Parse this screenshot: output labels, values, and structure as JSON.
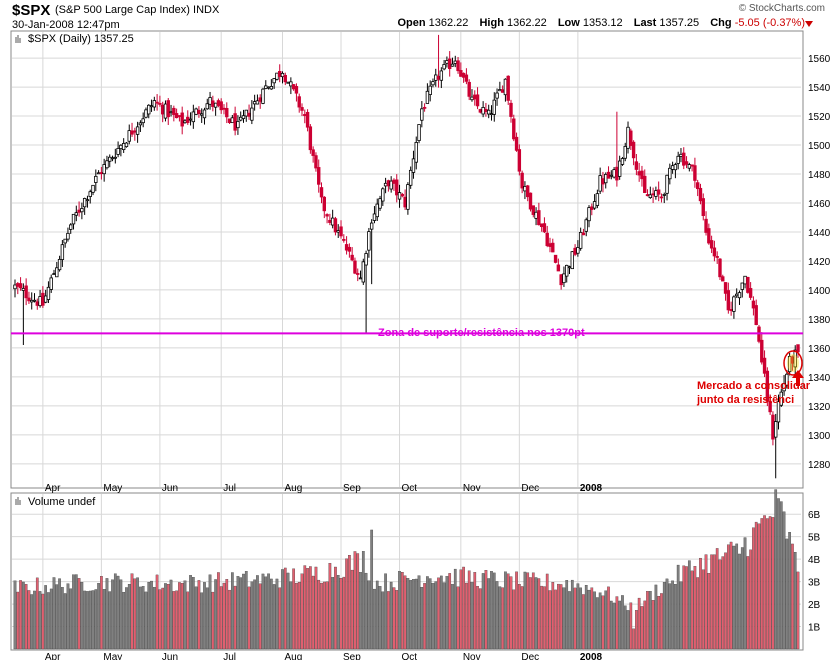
{
  "header": {
    "symbol": "$SPX",
    "name": "(S&P 500 Large Cap Index)",
    "exchange": "INDX",
    "datetime": "30-Jan-2008 12:47pm",
    "brand": "© StockCharts.com",
    "open_label": "Open",
    "open": "1362.22",
    "high_label": "High",
    "high": "1362.22",
    "low_label": "Low",
    "low": "1353.12",
    "last_label": "Last",
    "last": "1357.25",
    "chg_label": "Chg",
    "chg": "-5.05 (-0.37%)"
  },
  "price_panel": {
    "legend": "$SPX (Daily) 1357.25",
    "support_label": "Zona de suporte/resistência nos 1370pt",
    "annotation_line1": "Mercado a consolidar",
    "annotation_line2": "junto da resistênci",
    "support_color": "#dd00dd",
    "annotation_color": "#dd0000"
  },
  "volume_panel": {
    "legend": "Volume undef"
  },
  "colors": {
    "up": "#000000",
    "down": "#cc0033",
    "vol_up": "#808080",
    "vol_down": "#e06070",
    "grid": "#d8d8d8"
  },
  "chart_data": [
    {
      "type": "candlestick",
      "title": "$SPX (Daily) 1357.25",
      "y_ticks": [
        1280,
        1300,
        1320,
        1340,
        1360,
        1380,
        1400,
        1420,
        1440,
        1460,
        1480,
        1500,
        1520,
        1540,
        1560
      ],
      "ylim": [
        1264,
        1578
      ],
      "x_ticks": [
        "Apr",
        "May",
        "Jun",
        "Jul",
        "Aug",
        "Sep",
        "Oct",
        "Nov",
        "Dec",
        "2008"
      ],
      "support_level": 1370,
      "anchors": [
        [
          0,
          1402
        ],
        [
          10,
          1390
        ],
        [
          20,
          1445
        ],
        [
          30,
          1480
        ],
        [
          40,
          1505
        ],
        [
          50,
          1530
        ],
        [
          60,
          1515
        ],
        [
          70,
          1530
        ],
        [
          80,
          1512
        ],
        [
          90,
          1540
        ],
        [
          96,
          1552
        ],
        [
          104,
          1520
        ],
        [
          110,
          1460
        ],
        [
          118,
          1432
        ],
        [
          124,
          1408
        ],
        [
          128,
          1450
        ],
        [
          134,
          1475
        ],
        [
          140,
          1460
        ],
        [
          146,
          1525
        ],
        [
          152,
          1548
        ],
        [
          158,
          1560
        ],
        [
          164,
          1530
        ],
        [
          170,
          1520
        ],
        [
          176,
          1545
        ],
        [
          182,
          1472
        ],
        [
          190,
          1440
        ],
        [
          196,
          1408
        ],
        [
          202,
          1430
        ],
        [
          210,
          1475
        ],
        [
          216,
          1480
        ],
        [
          220,
          1510
        ],
        [
          226,
          1465
        ],
        [
          232,
          1465
        ],
        [
          238,
          1495
        ],
        [
          244,
          1480
        ],
        [
          248,
          1440
        ],
        [
          252,
          1420
        ],
        [
          256,
          1385
        ],
        [
          262,
          1410
        ],
        [
          266,
          1378
        ],
        [
          270,
          1325
        ],
        [
          272,
          1300
        ],
        [
          274,
          1322
        ],
        [
          278,
          1350
        ],
        [
          281,
          1357
        ]
      ],
      "extremes": [
        {
          "index": 3,
          "low": 1362
        },
        {
          "index": 126,
          "low": 1370
        },
        {
          "index": 128,
          "low": 1404
        },
        {
          "index": 152,
          "high": 1576
        },
        {
          "index": 216,
          "high": 1523
        },
        {
          "index": 273,
          "low": 1270
        }
      ],
      "last_candle": {
        "open": 1362.22,
        "high": 1362.22,
        "low": 1353.12,
        "close": 1357.25
      }
    },
    {
      "type": "bar",
      "title": "Volume undef",
      "y_tick_labels": [
        "1B",
        "2B",
        "3B",
        "4B",
        "5B",
        "6B"
      ],
      "ylim": [
        0,
        6.9
      ],
      "x_ticks": [
        "Apr",
        "May",
        "Jun",
        "Jul",
        "Aug",
        "Sep",
        "Oct",
        "Nov",
        "Dec",
        "2008"
      ],
      "anchors": [
        [
          0,
          2.7
        ],
        [
          30,
          3.0
        ],
        [
          60,
          2.9
        ],
        [
          90,
          3.1
        ],
        [
          110,
          3.4
        ],
        [
          125,
          4.0
        ],
        [
          130,
          2.9
        ],
        [
          150,
          3.3
        ],
        [
          180,
          3.0
        ],
        [
          200,
          2.9
        ],
        [
          212,
          2.5
        ],
        [
          222,
          1.8
        ],
        [
          232,
          2.8
        ],
        [
          244,
          3.7
        ],
        [
          260,
          4.4
        ],
        [
          270,
          5.8
        ],
        [
          274,
          6.5
        ],
        [
          281,
          3.5
        ]
      ],
      "spikes": [
        {
          "index": 128,
          "value": 5.3
        },
        {
          "index": 274,
          "value": 6.7
        },
        {
          "index": 222,
          "value": 0.9
        }
      ]
    }
  ]
}
